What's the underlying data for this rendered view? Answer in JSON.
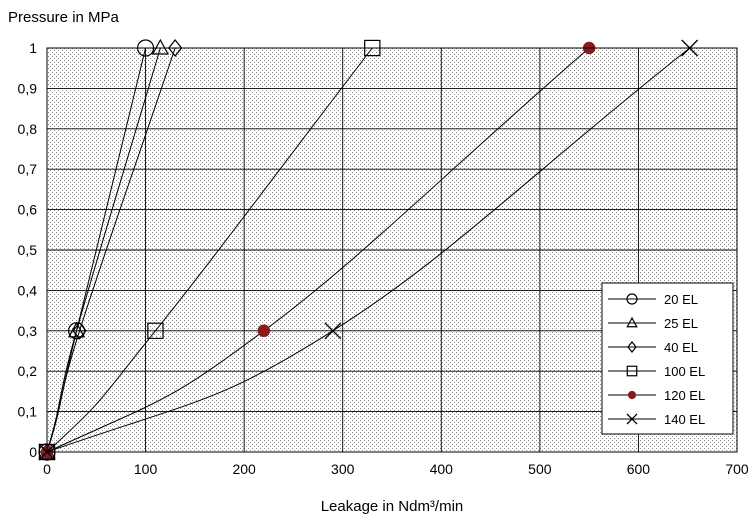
{
  "chart_data": {
    "type": "line",
    "ylabel": "Pressure in MPa",
    "xlabel": "Leakage in Ndm³/min",
    "xlim": [
      0,
      700
    ],
    "ylim": [
      0,
      1
    ],
    "x_ticks": [
      "0",
      "100",
      "200",
      "300",
      "400",
      "500",
      "600",
      "700"
    ],
    "y_ticks": [
      "0",
      "0,1",
      "0,2",
      "0,3",
      "0,4",
      "0,5",
      "0,6",
      "0,7",
      "0,8",
      "0,9",
      "1"
    ],
    "grid": true,
    "legend_position": "lower-right",
    "series": [
      {
        "name": "20 EL",
        "marker": "circle",
        "x": [
          0,
          30,
          100
        ],
        "y": [
          0,
          0.3,
          1
        ]
      },
      {
        "name": "25 EL",
        "marker": "triangle",
        "x": [
          0,
          30,
          115
        ],
        "y": [
          0,
          0.3,
          1
        ]
      },
      {
        "name": "40 EL",
        "marker": "diamond",
        "x": [
          0,
          33,
          130
        ],
        "y": [
          0,
          0.3,
          1
        ]
      },
      {
        "name": "100 EL",
        "marker": "square",
        "x": [
          0,
          110,
          330
        ],
        "y": [
          0,
          0.3,
          1
        ]
      },
      {
        "name": "120 EL",
        "marker": "filled-circle",
        "x": [
          0,
          220,
          550
        ],
        "y": [
          0,
          0.3,
          1
        ]
      },
      {
        "name": "140 EL",
        "marker": "cross",
        "x": [
          0,
          290,
          652
        ],
        "y": [
          0,
          0.3,
          1
        ]
      }
    ],
    "colors": {
      "line": "#000000",
      "filled_marker": "#8b1a1a",
      "plot_background": "#d9d9d9",
      "grid": "#000000"
    }
  }
}
